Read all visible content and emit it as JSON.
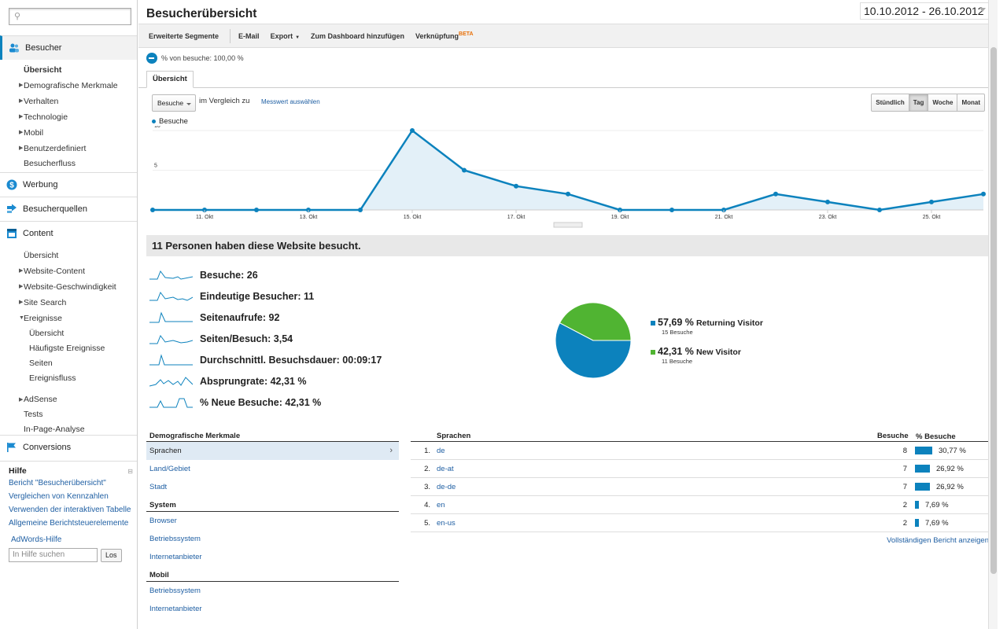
{
  "sidebar": {
    "search_placeholder": "",
    "sections": [
      {
        "label": "Besucher",
        "icon": "people-icon"
      },
      {
        "label": "Werbung",
        "icon": "dollar-icon"
      },
      {
        "label": "Besucherquellen",
        "icon": "arrow-icon"
      },
      {
        "label": "Content",
        "icon": "content-icon"
      },
      {
        "label": "Conversions",
        "icon": "flag-icon"
      }
    ],
    "besucher_items": [
      "Übersicht",
      "Demografische Merkmale",
      "Verhalten",
      "Technologie",
      "Mobil",
      "Benutzerdefiniert",
      "Besucherfluss"
    ],
    "content_items": [
      "Übersicht",
      "Website-Content",
      "Website-Geschwindigkeit",
      "Site Search",
      "Ereignisse"
    ],
    "ereignisse_items": [
      "Übersicht",
      "Häufigste Ereignisse",
      "Seiten",
      "Ereignisfluss"
    ],
    "content_tail": [
      "AdSense",
      "Tests",
      "In-Page-Analyse"
    ],
    "help": {
      "title": "Hilfe",
      "links": [
        "Bericht \"Besucherübersicht\"",
        "Vergleichen von Kennzahlen",
        "Verwenden der interaktiven Tabelle",
        "Allgemeine Berichtsteuerelemente"
      ],
      "adwords": "AdWords-Hilfe",
      "search_placeholder": "In Hilfe suchen",
      "search_button": "Los"
    }
  },
  "header": {
    "title": "Besucherübersicht",
    "daterange": "10.10.2012 - 26.10.2012"
  },
  "toolbar": {
    "segments": "Erweiterte Segmente",
    "email": "E-Mail",
    "export": "Export",
    "dashboard": "Zum Dashboard hinzufügen",
    "shortcut": "Verknüpfung",
    "beta": "BETA"
  },
  "segment": {
    "text": "% von besuche: 100,00 %"
  },
  "tabs": {
    "overview": "Übersicht"
  },
  "chart_controls": {
    "metric": "Besuche",
    "compare": "im Vergleich zu",
    "select_metric": "Messwert auswählen",
    "granularity": [
      "Stündlich",
      "Tag",
      "Woche",
      "Monat"
    ],
    "active": "Tag",
    "legend": "Besuche"
  },
  "chart_data": {
    "type": "area",
    "x": [
      "10. Okt",
      "11. Okt",
      "12. Okt",
      "13. Okt",
      "14. Okt",
      "15. Okt",
      "16. Okt",
      "17. Okt",
      "18. Okt",
      "19. Okt",
      "20. Okt",
      "21. Okt",
      "22. Okt",
      "23. Okt",
      "24. Okt",
      "25. Okt",
      "26. Okt"
    ],
    "tick_labels": [
      "11. Okt",
      "13. Okt",
      "15. Okt",
      "17. Okt",
      "19. Okt",
      "21. Okt",
      "23. Okt",
      "25. Okt"
    ],
    "series": [
      {
        "name": "Besuche",
        "values": [
          0,
          0,
          0,
          0,
          0,
          10,
          5,
          3,
          2,
          0,
          0,
          0,
          2,
          1,
          0,
          1,
          2
        ]
      }
    ],
    "yticks": [
      5,
      10
    ],
    "ylim": [
      0,
      10
    ],
    "color": "#0c82bd"
  },
  "summary": {
    "heading": "11 Personen haben diese Website besucht.",
    "metrics": [
      "Besuche: 26",
      "Eindeutige Besucher: 11",
      "Seitenaufrufe: 92",
      "Seiten/Besuch: 3,54",
      "Durchschnittl. Besuchsdauer: 00:09:17",
      "Absprungrate: 42,31 %",
      "% Neue Besuche: 42,31 %"
    ]
  },
  "pie": {
    "slices": [
      {
        "pct": "57,69 %",
        "name": "Returning Visitor",
        "sub": "15 Besuche",
        "value": 57.69,
        "color": "#0c82bd"
      },
      {
        "pct": "42,31 %",
        "name": "New Visitor",
        "sub": "11 Besuche",
        "value": 42.31,
        "color": "#50b432"
      }
    ]
  },
  "demographics": {
    "heading": "Demografische Merkmale",
    "items": [
      "Sprachen",
      "Land/Gebiet",
      "Stadt"
    ],
    "system_heading": "System",
    "system_items": [
      "Browser",
      "Betriebssystem",
      "Internetanbieter"
    ],
    "mobile_heading": "Mobil",
    "mobile_items": [
      "Betriebssystem",
      "Internetanbieter"
    ]
  },
  "languages": {
    "col_lang": "Sprachen",
    "col_visits": "Besuche",
    "col_pct": "% Besuche",
    "rows": [
      {
        "rank": "1.",
        "lang": "de",
        "visits": "8",
        "pct": "30,77 %",
        "share": 30.77
      },
      {
        "rank": "2.",
        "lang": "de-at",
        "visits": "7",
        "pct": "26,92 %",
        "share": 26.92
      },
      {
        "rank": "3.",
        "lang": "de-de",
        "visits": "7",
        "pct": "26,92 %",
        "share": 26.92
      },
      {
        "rank": "4.",
        "lang": "en",
        "visits": "2",
        "pct": "7,69 %",
        "share": 7.69
      },
      {
        "rank": "5.",
        "lang": "en-us",
        "visits": "2",
        "pct": "7,69 %",
        "share": 7.69
      }
    ],
    "full_report": "Vollständigen Bericht anzeigen"
  }
}
